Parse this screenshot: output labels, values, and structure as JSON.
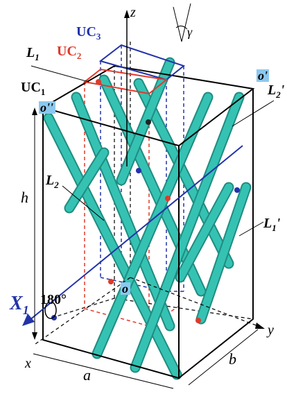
{
  "axes": {
    "z": "z",
    "y": "y",
    "x": "x"
  },
  "angle": "γ",
  "labels": {
    "L1": {
      "base": "L",
      "sub": "1"
    },
    "UC3": {
      "base": "UC",
      "sub": "3"
    },
    "UC2": {
      "base": "UC",
      "sub": "2"
    },
    "UC1": {
      "base": "UC",
      "sub": "1"
    },
    "o_prime": "o'",
    "L2_prime": {
      "base": "L",
      "sub": "2",
      "mark": "'"
    },
    "o_double_prime": "o''",
    "L2": {
      "base": "L",
      "sub": "2"
    },
    "h": "h",
    "L1_prime": {
      "base": "L",
      "sub": "1",
      "mark": "'"
    },
    "rotation": "180°",
    "X1": {
      "base": "X",
      "sub": "1"
    },
    "o": "o",
    "a": "a",
    "b": "b"
  }
}
